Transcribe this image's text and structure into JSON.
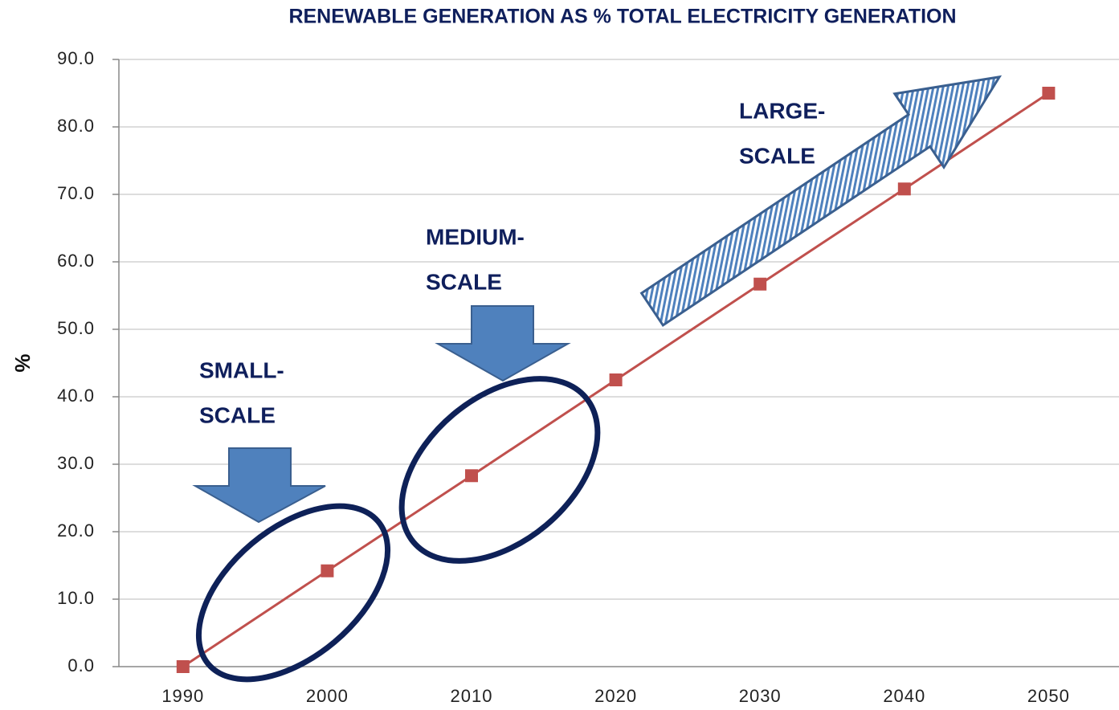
{
  "chart_data": {
    "type": "line",
    "title": "RENEWABLE GENERATION  AS  %  TOTAL ELECTRICITY GENERATION",
    "y_label": "%",
    "categories": [
      "1990",
      "2000",
      "2010",
      "2020",
      "2030",
      "2040",
      "2050"
    ],
    "values": [
      0,
      14.2,
      28.3,
      42.5,
      56.7,
      70.8,
      85
    ],
    "color": "#c0504d",
    "ylim": [
      0,
      90
    ],
    "yticks": [
      {
        "value": 0,
        "label": "0.0"
      },
      {
        "value": 10,
        "label": "10.0"
      },
      {
        "value": 20,
        "label": "20.0"
      },
      {
        "value": 30,
        "label": "30.0"
      },
      {
        "value": 40,
        "label": "40.0"
      },
      {
        "value": 50,
        "label": "50.0"
      },
      {
        "value": 60,
        "label": "60.0"
      },
      {
        "value": 70,
        "label": "70.0"
      },
      {
        "value": 80,
        "label": "80.0"
      },
      {
        "value": 90,
        "label": "90.0"
      }
    ],
    "grid": true,
    "annotations": [
      {
        "lines": [
          "SMALL-",
          "SCALE"
        ]
      },
      {
        "lines": [
          "MEDIUM-",
          "SCALE"
        ]
      },
      {
        "lines": [
          "LARGE-",
          "SCALE"
        ]
      }
    ]
  }
}
